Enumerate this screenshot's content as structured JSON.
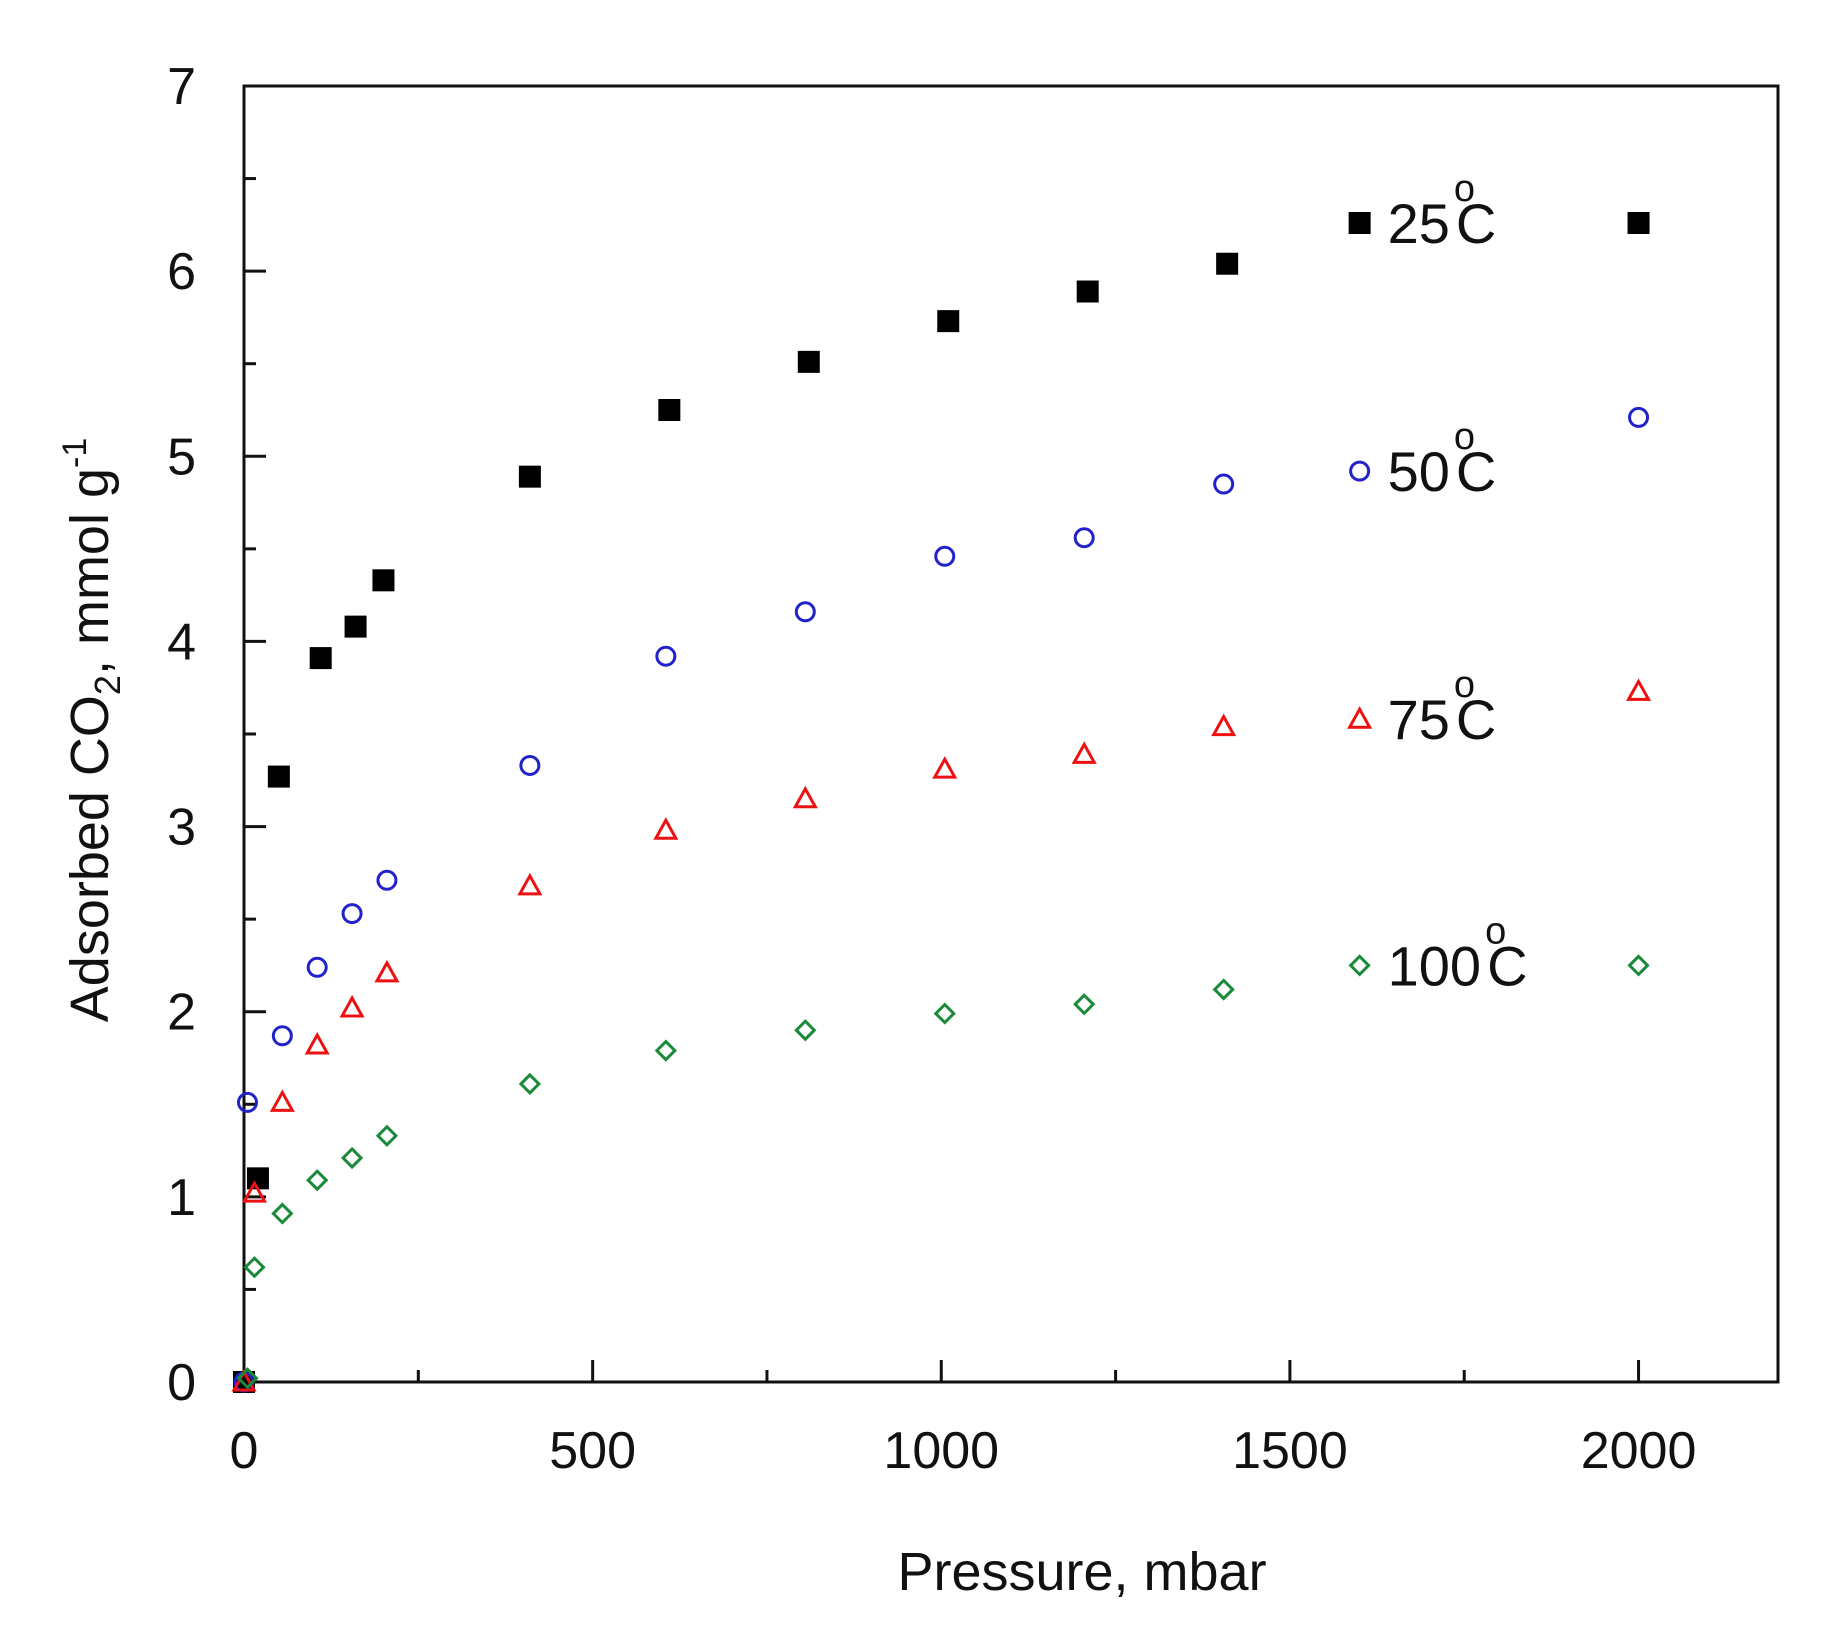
{
  "chart_data": {
    "type": "scatter",
    "title": "",
    "xlabel": "Pressure, mbar",
    "ylabel": {
      "prefix": "Adsorbed CO",
      "sub": "2",
      "middle": ", mmol g",
      "sup": "-1"
    },
    "xlim": [
      0,
      2200
    ],
    "ylim": [
      0,
      7
    ],
    "xticks": [
      0,
      500,
      1000,
      1500,
      2000
    ],
    "xminor": [
      250,
      750,
      1250,
      1750
    ],
    "yticks": [
      0,
      1,
      2,
      3,
      4,
      5,
      6,
      7
    ],
    "yminor": [
      0.5,
      1.5,
      2.5,
      3.5,
      4.5,
      5.5,
      6.5
    ],
    "legend_position": "right",
    "series": [
      {
        "name": "25 °C",
        "temp": "25",
        "sup": "o",
        "unit": "C",
        "marker": "square-filled",
        "color": "#000000",
        "x": [
          0,
          20,
          50,
          110,
          160,
          200,
          410,
          610,
          810,
          1010,
          1210,
          1410,
          2000
        ],
        "y": [
          0,
          1.1,
          3.27,
          3.91,
          4.08,
          4.33,
          4.89,
          5.25,
          5.51,
          5.73,
          5.89,
          6.04,
          6.26
        ]
      },
      {
        "name": "50 °C",
        "temp": "50",
        "sup": "o",
        "unit": "C",
        "marker": "circle-open",
        "color": "#2222cc",
        "x": [
          0,
          5,
          55,
          105,
          155,
          205,
          410,
          605,
          805,
          1005,
          1205,
          1405,
          2000
        ],
        "y": [
          0,
          1.51,
          1.87,
          2.24,
          2.53,
          2.71,
          3.33,
          3.92,
          4.16,
          4.46,
          4.56,
          4.85,
          5.21
        ]
      },
      {
        "name": "75 °C",
        "temp": "75",
        "sup": "o",
        "unit": "C",
        "marker": "triangle-open",
        "color": "#ee1111",
        "x": [
          0,
          15,
          55,
          105,
          155,
          205,
          410,
          605,
          805,
          1005,
          1205,
          1405,
          2000
        ],
        "y": [
          0,
          1.02,
          1.51,
          1.82,
          2.02,
          2.21,
          2.68,
          2.98,
          3.15,
          3.31,
          3.39,
          3.54,
          3.73
        ]
      },
      {
        "name": "100 °C",
        "temp": "100",
        "sup": "o",
        "unit": "C",
        "marker": "diamond-open",
        "color": "#1a8a3a",
        "x": [
          5,
          15,
          55,
          105,
          155,
          205,
          410,
          605,
          805,
          1005,
          1205,
          1405,
          2000
        ],
        "y": [
          0.02,
          0.62,
          0.91,
          1.09,
          1.21,
          1.33,
          1.61,
          1.79,
          1.9,
          1.99,
          2.04,
          2.12,
          2.25
        ]
      }
    ],
    "legend_marker_x": 1600,
    "legend_y": [
      6.26,
      4.92,
      3.58,
      2.25
    ]
  }
}
